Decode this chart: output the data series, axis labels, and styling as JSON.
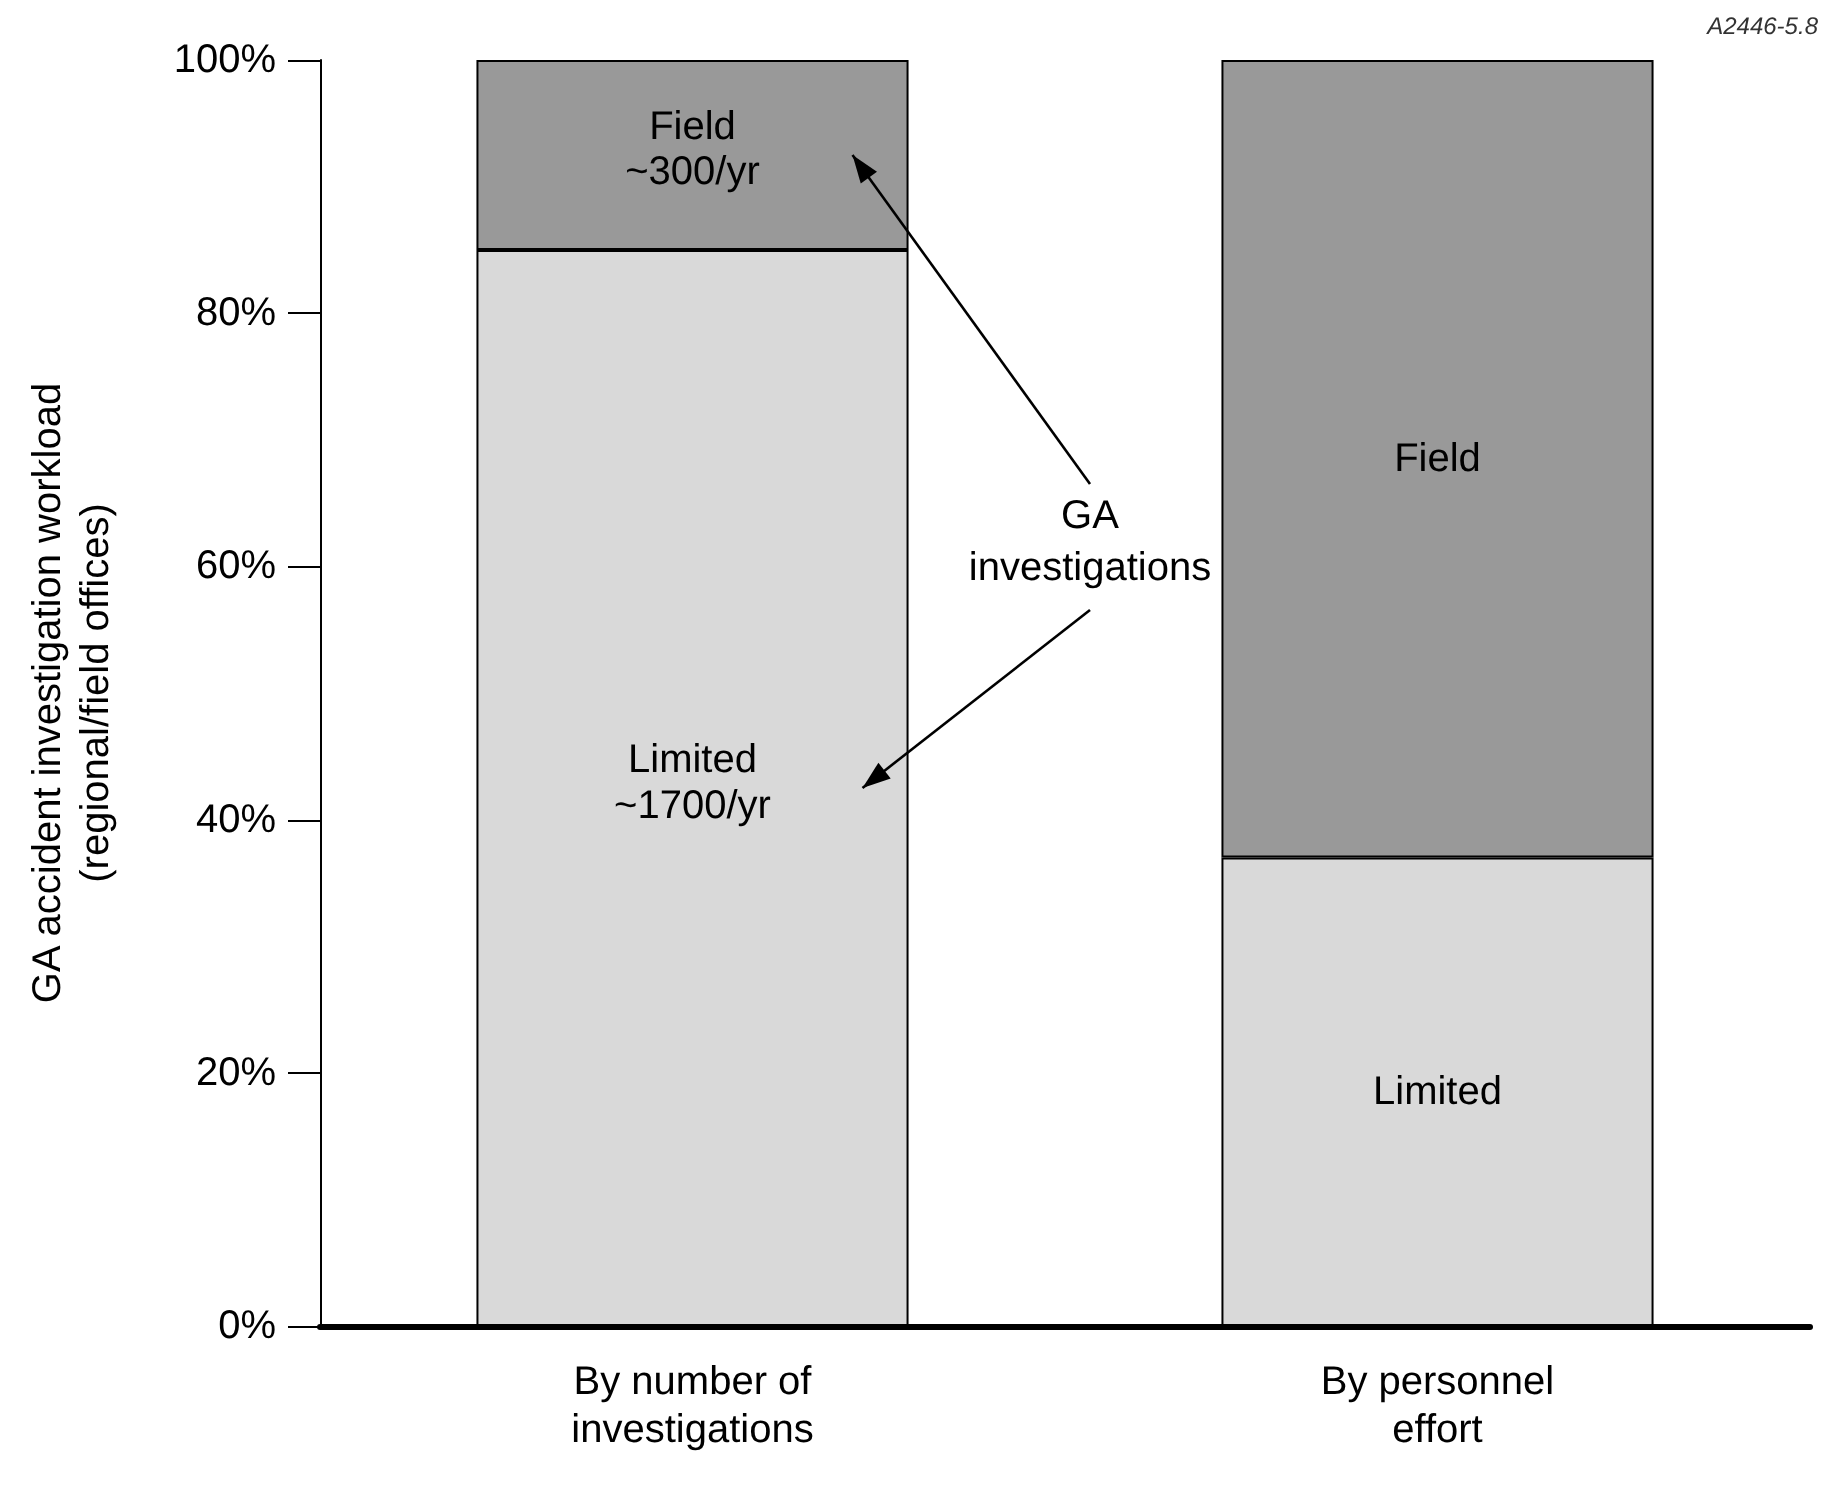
{
  "chart_data": {
    "type": "bar",
    "stacked": true,
    "categories": [
      "By number of\ninvestigations",
      "By personnel\neffort"
    ],
    "series": [
      {
        "name": "Limited",
        "color": "#d9d9d9",
        "values": [
          85,
          37
        ]
      },
      {
        "name": "Field",
        "color": "#999999",
        "values": [
          15,
          63
        ]
      }
    ],
    "ylabel": "GA accident investigation workload\n(regional/field offices)",
    "ylim": [
      0,
      100
    ],
    "yticks": [
      {
        "value": 0,
        "label": "0%"
      },
      {
        "value": 20,
        "label": "20%"
      },
      {
        "value": 40,
        "label": "40%"
      },
      {
        "value": 60,
        "label": "60%"
      },
      {
        "value": 80,
        "label": "80%"
      },
      {
        "value": 100,
        "label": "100%"
      }
    ],
    "grid": false,
    "legend": false,
    "annotations": [
      "GA\ninvestigations",
      "A2446-5.8",
      "~1700/yr",
      "~300/yr"
    ]
  }
}
